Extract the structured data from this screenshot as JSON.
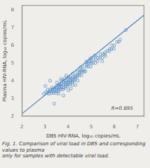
{
  "chart_data": {
    "type": "scatter",
    "x_label": "DBS HIV-RNA, log₁₀ copies/mL",
    "y_label": "Plasma HIV-RNA, log₁₀ copies/mL",
    "annotation": "R=0.895",
    "caption": [
      "Fig. 1. Comparison of viral load in DBS and corresponding values to plasma",
      "only for samples with detectable viral load."
    ],
    "xlim": [
      2,
      7.3
    ],
    "ylim": [
      2,
      8.3
    ],
    "xticks": [
      2,
      3,
      4,
      5,
      6,
      7
    ],
    "yticks": [
      2,
      3,
      4,
      5,
      6,
      7,
      8
    ],
    "grid": false,
    "series": [
      {
        "type": "scatter",
        "color": "#5a8fc8",
        "marker": "circle",
        "x": [
          2.95,
          3.05,
          3.1,
          3.12,
          3.18,
          3.2,
          3.22,
          3.28,
          3.3,
          3.32,
          3.3,
          3.38,
          3.4,
          3.42,
          3.4,
          3.48,
          3.5,
          3.5,
          3.52,
          3.5,
          3.58,
          3.6,
          3.6,
          3.62,
          3.6,
          3.68,
          3.7,
          3.7,
          3.72,
          3.7,
          3.78,
          3.8,
          3.8,
          3.82,
          3.8,
          3.88,
          3.9,
          3.9,
          3.92,
          3.9,
          3.98,
          4.0,
          4.0,
          4.02,
          4.0,
          4.02,
          4.08,
          4.1,
          4.1,
          4.12,
          4.1,
          4.18,
          4.2,
          4.2,
          4.22,
          4.2,
          4.28,
          4.3,
          4.3,
          4.32,
          4.38,
          4.4,
          4.4,
          4.48,
          4.5,
          4.5,
          4.52,
          4.58,
          4.6,
          4.6,
          4.68,
          4.7,
          4.8,
          4.8,
          4.82,
          4.88,
          4.9,
          4.92,
          4.98,
          5.0,
          5.0,
          5.08,
          5.1,
          5.18,
          5.2,
          5.28,
          5.3,
          5.38,
          5.4,
          5.48,
          5.5,
          5.58,
          5.6,
          5.7,
          5.8,
          5.88,
          5.9,
          5.98,
          6.0,
          6.12,
          6.2,
          6.5,
          3.4,
          3.8,
          4.02,
          4.2,
          3.02,
          3.6,
          4.8,
          5.2,
          3.7,
          4.12,
          3.92,
          4.42,
          5.02,
          4.62,
          5.48,
          3.22,
          4.32,
          3.52,
          4.55,
          3.85,
          5.15,
          4.75,
          3.65,
          4.95,
          5.62,
          6.25,
          5.78
        ],
        "values": [
          3.28,
          3.38,
          3.32,
          3.5,
          3.28,
          3.42,
          3.52,
          3.32,
          3.42,
          3.52,
          3.62,
          3.32,
          3.42,
          3.52,
          3.62,
          3.32,
          3.42,
          3.52,
          3.62,
          3.72,
          3.42,
          3.52,
          3.62,
          3.72,
          3.82,
          3.52,
          3.62,
          3.72,
          3.82,
          4.02,
          3.52,
          3.62,
          3.82,
          3.92,
          4.02,
          3.62,
          3.72,
          3.82,
          3.92,
          4.02,
          3.72,
          3.82,
          3.92,
          4.02,
          4.12,
          4.22,
          3.82,
          3.92,
          4.02,
          4.12,
          4.22,
          3.92,
          4.02,
          4.12,
          4.22,
          4.42,
          4.02,
          4.12,
          4.22,
          4.32,
          4.22,
          4.32,
          4.52,
          4.32,
          4.42,
          4.52,
          4.62,
          4.32,
          4.52,
          4.62,
          4.52,
          4.62,
          4.82,
          4.92,
          5.02,
          4.82,
          5.02,
          5.12,
          4.82,
          5.02,
          5.12,
          5.02,
          5.22,
          5.02,
          5.22,
          5.12,
          5.32,
          5.32,
          5.52,
          5.32,
          5.52,
          5.52,
          5.62,
          5.72,
          5.82,
          5.82,
          6.02,
          5.82,
          6.02,
          6.22,
          6.22,
          6.88,
          2.72,
          3.18,
          3.48,
          3.78,
          3.72,
          3.28,
          5.12,
          5.42,
          4.12,
          3.58,
          4.32,
          4.02,
          5.32,
          4.82,
          5.12,
          4.02,
          3.78,
          3.92,
          4.78,
          4.15,
          5.45,
          4.55,
          3.78,
          5.25,
          5.42,
          6.35,
          5.68
        ]
      },
      {
        "type": "line",
        "color": "#4a7cb5",
        "line_style": "solid",
        "x": [
          2,
          7.3
        ],
        "values": [
          2.144,
          7.7461
        ]
      }
    ]
  }
}
